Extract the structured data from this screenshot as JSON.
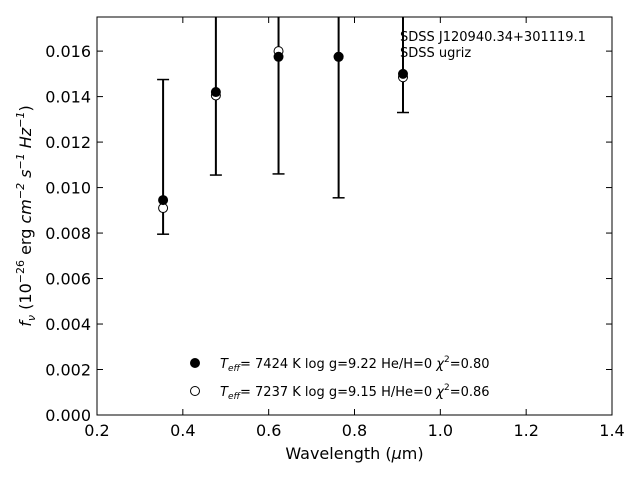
{
  "chart_data": {
    "type": "scatter",
    "title": "",
    "xlabel": {
      "prefix": "Wavelength (",
      "sym": "μ",
      "suffix": "m)"
    },
    "ylabel": {
      "f": "f",
      "f_sub": "ν",
      "paren_open": " (10",
      "exp26": "−26",
      "erg": " erg ",
      "cm": "cm",
      "exp2": "−2",
      "s": " s",
      "exp1": "−1",
      "hz": " Hz",
      "exp1b": "−1",
      "paren_close": ")"
    },
    "xlim": [
      0.2,
      1.4
    ],
    "ylim": [
      0.0,
      0.0175
    ],
    "xticks": [
      "0.2",
      "0.4",
      "0.6",
      "0.8",
      "1.0",
      "1.2",
      "1.4"
    ],
    "yticks": [
      "0.000",
      "0.002",
      "0.004",
      "0.006",
      "0.008",
      "0.010",
      "0.012",
      "0.014",
      "0.016"
    ],
    "annotation": [
      "SDSS J120940.34+301119.1",
      "SDSS ugriz"
    ],
    "observed": [
      {
        "x": 0.354,
        "y": 0.00935,
        "yerr_low": 0.00795,
        "yerr_high": 0.01475
      },
      {
        "x": 0.477,
        "y": 0.0141,
        "yerr_low": 0.01055,
        "yerr_high": 0.0178
      },
      {
        "x": 0.623,
        "y": 0.01595,
        "yerr_low": 0.0106,
        "yerr_high": 0.0178
      },
      {
        "x": 0.763,
        "y": 0.01575,
        "yerr_low": 0.00955,
        "yerr_high": 0.0178
      },
      {
        "x": 0.913,
        "y": 0.0149,
        "yerr_low": 0.0133,
        "yerr_high": 0.0178
      }
    ],
    "series": [
      {
        "marker": "filled",
        "label_T": "T",
        "label_eff": "eff",
        "label_mid": "=  7424 K  log g=9.22  He/H=0  ",
        "label_chi": "χ",
        "label_chi_exp": "2",
        "label_end": "=0.80",
        "y": [
          0.00945,
          0.0142,
          0.01575,
          0.01575,
          0.015
        ]
      },
      {
        "marker": "open",
        "label_T": "T",
        "label_eff": "eff",
        "label_mid": "=  7237 K  log g=9.15  H/He=0  ",
        "label_chi": "χ",
        "label_chi_exp": "2",
        "label_end": "=0.86",
        "y": [
          0.0091,
          0.01405,
          0.016,
          0.01575,
          0.01485
        ]
      }
    ],
    "legend_position": "bottom-center",
    "grid": false
  }
}
